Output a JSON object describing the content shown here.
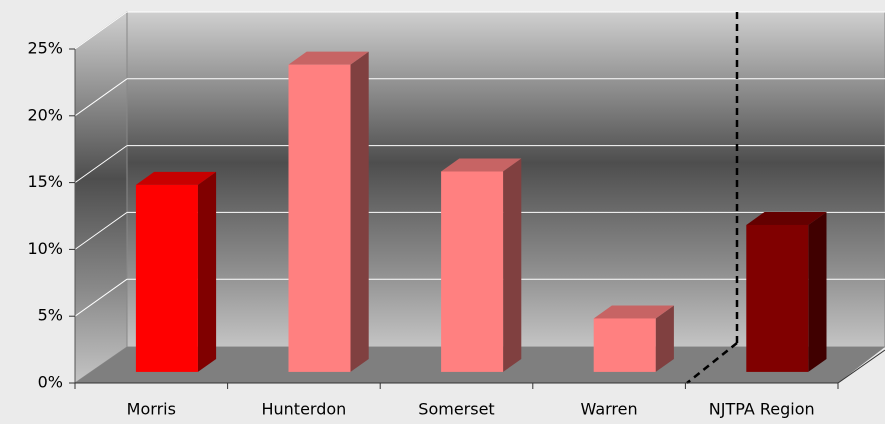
{
  "chart_data": {
    "type": "bar",
    "categories": [
      "Morris",
      "Hunterdon",
      "Somerset",
      "Warren",
      "NJTPA Region"
    ],
    "values": [
      14,
      23,
      15,
      4,
      11
    ],
    "colors": [
      "#ff0000",
      "#ff8080",
      "#ff8080",
      "#ff8080",
      "#800000"
    ],
    "ylim": [
      0,
      25
    ],
    "yticks": [
      {
        "value": 0,
        "label": "0%"
      },
      {
        "value": 5,
        "label": "5%"
      },
      {
        "value": 10,
        "label": "10%"
      },
      {
        "value": 15,
        "label": "15%"
      },
      {
        "value": 20,
        "label": "20%"
      },
      {
        "value": 25,
        "label": "25%"
      }
    ],
    "grid": true
  }
}
